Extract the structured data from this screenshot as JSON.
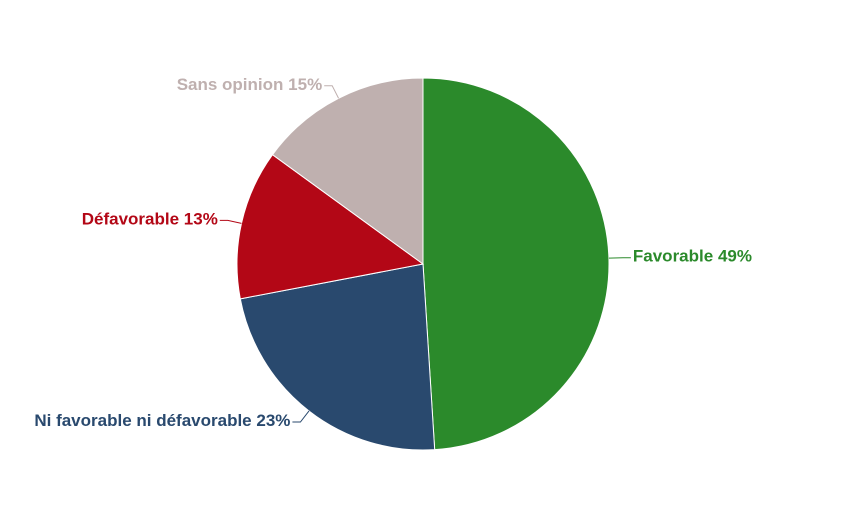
{
  "chart_data": {
    "type": "pie",
    "categories": [
      "Favorable",
      "Ni favorable ni défavorable",
      "Défavorable",
      "Sans opinion"
    ],
    "values": [
      49,
      23,
      13,
      15
    ],
    "value_labels": [
      "49%",
      "23%",
      "13%",
      "15%"
    ],
    "colors": [
      "#2b8a2b",
      "#29496e",
      "#b30716",
      "#bfb0af"
    ]
  }
}
